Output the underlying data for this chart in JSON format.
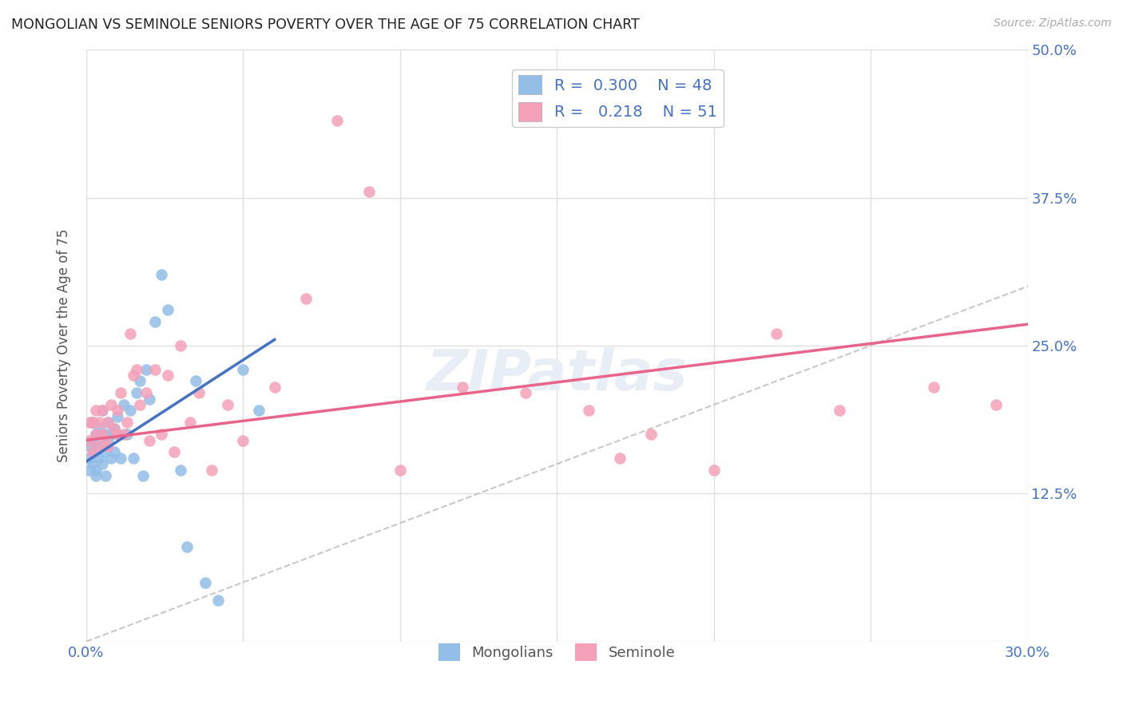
{
  "title": "MONGOLIAN VS SEMINOLE SENIORS POVERTY OVER THE AGE OF 75 CORRELATION CHART",
  "source": "Source: ZipAtlas.com",
  "ylabel": "Seniors Poverty Over the Age of 75",
  "xlim": [
    0.0,
    0.3
  ],
  "ylim": [
    0.0,
    0.5
  ],
  "xticks": [
    0.0,
    0.05,
    0.1,
    0.15,
    0.2,
    0.25,
    0.3
  ],
  "yticks": [
    0.0,
    0.125,
    0.25,
    0.375,
    0.5
  ],
  "mongolian_color": "#92BEE8",
  "seminole_color": "#F4A0B8",
  "reg_blue": "#4472c4",
  "reg_pink": "#E8648A",
  "mongolian_R": 0.3,
  "mongolian_N": 48,
  "seminole_R": 0.218,
  "seminole_N": 51,
  "background_color": "#ffffff",
  "grid_color": "#e0e0e0",
  "mongo_x": [
    0.001,
    0.001,
    0.001,
    0.002,
    0.002,
    0.002,
    0.003,
    0.003,
    0.003,
    0.003,
    0.004,
    0.004,
    0.004,
    0.005,
    0.005,
    0.005,
    0.005,
    0.006,
    0.006,
    0.006,
    0.007,
    0.007,
    0.008,
    0.008,
    0.009,
    0.009,
    0.01,
    0.01,
    0.011,
    0.012,
    0.013,
    0.014,
    0.015,
    0.016,
    0.017,
    0.018,
    0.019,
    0.02,
    0.022,
    0.024,
    0.026,
    0.03,
    0.032,
    0.035,
    0.038,
    0.042,
    0.05,
    0.055
  ],
  "mongo_y": [
    0.155,
    0.145,
    0.165,
    0.15,
    0.17,
    0.185,
    0.14,
    0.16,
    0.175,
    0.145,
    0.165,
    0.155,
    0.18,
    0.15,
    0.165,
    0.175,
    0.195,
    0.14,
    0.16,
    0.175,
    0.17,
    0.185,
    0.155,
    0.175,
    0.16,
    0.18,
    0.175,
    0.19,
    0.155,
    0.2,
    0.175,
    0.195,
    0.155,
    0.21,
    0.22,
    0.14,
    0.23,
    0.205,
    0.27,
    0.31,
    0.28,
    0.145,
    0.08,
    0.22,
    0.05,
    0.035,
    0.23,
    0.195
  ],
  "sem_x": [
    0.001,
    0.001,
    0.002,
    0.002,
    0.003,
    0.003,
    0.004,
    0.004,
    0.005,
    0.005,
    0.006,
    0.007,
    0.007,
    0.008,
    0.009,
    0.01,
    0.01,
    0.011,
    0.012,
    0.013,
    0.014,
    0.015,
    0.016,
    0.017,
    0.019,
    0.02,
    0.022,
    0.024,
    0.026,
    0.028,
    0.03,
    0.033,
    0.036,
    0.04,
    0.045,
    0.05,
    0.06,
    0.07,
    0.08,
    0.09,
    0.1,
    0.12,
    0.14,
    0.16,
    0.17,
    0.18,
    0.2,
    0.22,
    0.24,
    0.27,
    0.29
  ],
  "sem_y": [
    0.17,
    0.185,
    0.16,
    0.185,
    0.175,
    0.195,
    0.165,
    0.185,
    0.175,
    0.195,
    0.17,
    0.165,
    0.185,
    0.2,
    0.18,
    0.175,
    0.195,
    0.21,
    0.175,
    0.185,
    0.26,
    0.225,
    0.23,
    0.2,
    0.21,
    0.17,
    0.23,
    0.175,
    0.225,
    0.16,
    0.25,
    0.185,
    0.21,
    0.145,
    0.2,
    0.17,
    0.215,
    0.29,
    0.44,
    0.38,
    0.145,
    0.215,
    0.21,
    0.195,
    0.155,
    0.175,
    0.145,
    0.26,
    0.195,
    0.215,
    0.2
  ],
  "mongo_line_x": [
    0.0,
    0.06
  ],
  "mongo_line_y": [
    0.152,
    0.255
  ],
  "sem_line_x": [
    0.0,
    0.3
  ],
  "sem_line_y": [
    0.17,
    0.268
  ]
}
